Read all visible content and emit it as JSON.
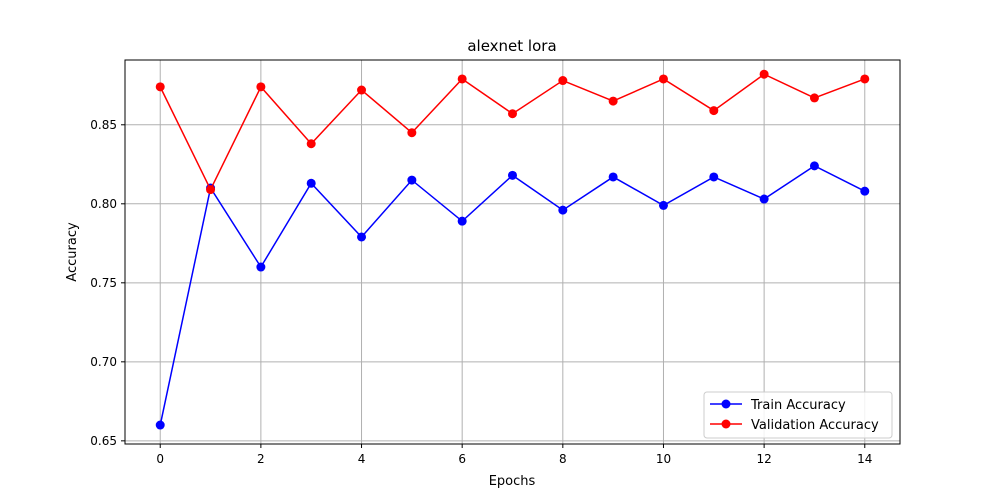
{
  "chart_data": {
    "type": "line",
    "title": "alexnet lora",
    "xlabel": "Epochs",
    "ylabel": "Accuracy",
    "x": [
      0,
      1,
      2,
      3,
      4,
      5,
      6,
      7,
      8,
      9,
      10,
      11,
      12,
      13,
      14
    ],
    "xlim": [
      -0.7,
      14.7
    ],
    "ylim": [
      0.648,
      0.891
    ],
    "xticks": [
      0,
      2,
      4,
      6,
      8,
      10,
      12,
      14
    ],
    "yticks": [
      0.65,
      0.7,
      0.75,
      0.8,
      0.85
    ],
    "xtick_labels": [
      "0",
      "2",
      "4",
      "6",
      "8",
      "10",
      "12",
      "14"
    ],
    "ytick_labels": [
      "0.65",
      "0.70",
      "0.75",
      "0.80",
      "0.85"
    ],
    "grid": true,
    "legend_position": "bottom-right",
    "series": [
      {
        "name": "Train Accuracy",
        "color": "#0000ff",
        "marker": "circle",
        "values": [
          0.66,
          0.81,
          0.76,
          0.813,
          0.779,
          0.815,
          0.789,
          0.818,
          0.796,
          0.817,
          0.799,
          0.817,
          0.803,
          0.824,
          0.808
        ]
      },
      {
        "name": "Validation Accuracy",
        "color": "#ff0000",
        "marker": "circle",
        "values": [
          0.874,
          0.809,
          0.874,
          0.838,
          0.872,
          0.845,
          0.879,
          0.857,
          0.878,
          0.865,
          0.879,
          0.859,
          0.882,
          0.867,
          0.879
        ]
      }
    ]
  }
}
